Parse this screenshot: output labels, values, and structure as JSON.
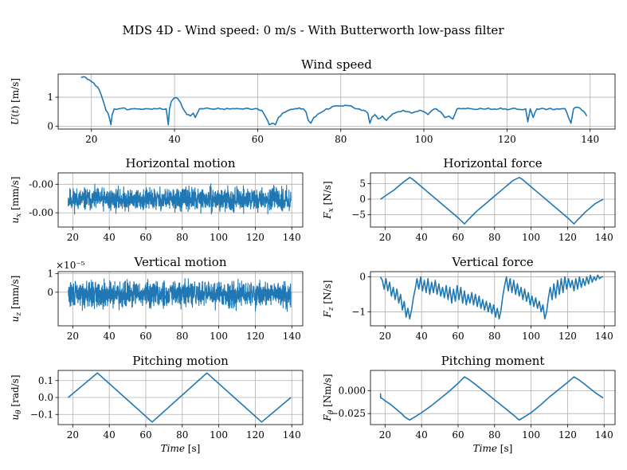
{
  "figure": {
    "title": "MDS 4D - Wind speed: 0 m/s - With Butterworth low-pass filter",
    "line_color": "#1f77b4"
  },
  "chart_data": [
    {
      "id": "wind-speed",
      "type": "line",
      "title": "Wind speed",
      "xlabel": "",
      "ylabel": "U(t) [m/s]",
      "xlim": [
        12,
        146
      ],
      "ylim": [
        -0.1,
        1.8
      ],
      "xticks": [
        20,
        40,
        60,
        80,
        100,
        120,
        140
      ],
      "xtick_labels": [
        "20",
        "40",
        "60",
        "80",
        "100",
        "120",
        "140"
      ],
      "yticks": [
        0,
        1
      ],
      "ytick_labels": [
        "0",
        "1"
      ],
      "grid": true,
      "signal": "wind",
      "x": [
        17.5,
        18.5,
        19.5,
        20.5,
        21.5,
        22.3,
        23.0,
        23.5,
        24.0,
        24.3,
        24.7,
        25.0,
        25.5,
        26.5,
        30,
        34,
        36,
        38.0,
        38.5,
        38.8,
        39.2,
        40.0,
        40.8,
        41.5,
        42.3,
        43.0,
        43.8,
        44.5,
        45.0,
        46.0,
        47.0,
        48.5,
        50.0,
        51.5,
        53.0,
        54.5,
        56.0,
        58.0,
        60.0,
        61.0,
        62.0,
        62.8,
        63.5,
        64.3,
        65.0,
        66.0,
        67.5,
        69.5,
        71.0,
        71.6,
        72.2,
        72.8,
        73.5,
        75.0,
        76.5,
        77.5,
        78.0,
        79.5,
        81.0,
        82.5,
        84.0,
        85.5,
        86.5,
        87.0,
        87.5,
        88.2,
        89.0,
        90.0,
        91.0,
        92.0,
        93.0,
        94.0,
        95.0,
        96.0,
        97.0,
        98.0,
        99.0,
        100.0,
        101.0,
        102.0,
        103.0,
        104.0,
        105.0,
        106.0,
        107.0,
        108.0,
        110.0,
        114.0,
        118.0,
        121.0,
        124.5,
        125.0,
        125.6,
        126.3,
        127.2,
        128.0,
        129.0,
        130.0,
        132.0,
        134.0,
        134.8,
        135.4,
        136.0,
        137.0,
        138.0,
        138.8,
        139.2
      ],
      "y": [
        1.68,
        1.7,
        1.6,
        1.5,
        1.35,
        1.1,
        0.8,
        0.55,
        0.45,
        0.3,
        0.05,
        0.4,
        0.6,
        0.6,
        0.6,
        0.6,
        0.6,
        0.6,
        0.05,
        0.6,
        0.85,
        0.98,
        0.95,
        0.8,
        0.55,
        0.4,
        0.35,
        0.45,
        0.3,
        0.6,
        0.6,
        0.6,
        0.6,
        0.6,
        0.6,
        0.6,
        0.6,
        0.6,
        0.6,
        0.55,
        0.3,
        0.05,
        0.1,
        0.05,
        0.3,
        0.45,
        0.55,
        0.6,
        0.6,
        0.5,
        0.2,
        0.1,
        0.3,
        0.45,
        0.6,
        0.62,
        0.68,
        0.7,
        0.72,
        0.7,
        0.6,
        0.55,
        0.45,
        0.1,
        0.3,
        0.4,
        0.25,
        0.35,
        0.2,
        0.35,
        0.45,
        0.5,
        0.55,
        0.5,
        0.45,
        0.5,
        0.55,
        0.5,
        0.4,
        0.55,
        0.6,
        0.5,
        0.3,
        0.35,
        0.25,
        0.6,
        0.6,
        0.6,
        0.6,
        0.6,
        0.6,
        0.15,
        0.6,
        0.3,
        0.6,
        0.6,
        0.6,
        0.6,
        0.6,
        0.6,
        0.3,
        0.1,
        0.6,
        0.65,
        0.55,
        0.45,
        0.35
      ]
    },
    {
      "id": "horizontal-motion",
      "type": "line",
      "title": "Horizontal motion",
      "xlabel": "",
      "ylabel": "u_x [mm/s]",
      "xlim": [
        12,
        146
      ],
      "ylim": [
        -0.0045,
        0.0012
      ],
      "xticks": [
        20,
        40,
        60,
        80,
        100,
        120,
        140
      ],
      "xtick_labels": [
        "20",
        "40",
        "60",
        "80",
        "100",
        "120",
        "140"
      ],
      "yticks": [
        0.0,
        -0.003
      ],
      "ytick_labels": [
        "-0.00",
        "-0.00"
      ],
      "grid": true,
      "signal": "noise",
      "noise": {
        "x_start": 17.5,
        "x_end": 139.5,
        "center": -0.0016,
        "amplitude": 0.0017,
        "seed": 11
      }
    },
    {
      "id": "horizontal-force",
      "type": "line",
      "title": "Horizontal force",
      "xlabel": "",
      "ylabel": "F_x [N/s]",
      "xlim": [
        12,
        146
      ],
      "ylim": [
        -9,
        8.5
      ],
      "xticks": [
        20,
        40,
        60,
        80,
        100,
        120,
        140
      ],
      "xtick_labels": [
        "20",
        "40",
        "60",
        "80",
        "100",
        "120",
        "140"
      ],
      "yticks": [
        -5,
        0,
        5
      ],
      "ytick_labels": [
        "−5",
        "0",
        "5"
      ],
      "grid": true,
      "signal": "polyline",
      "x": [
        17.5,
        20,
        25,
        30,
        33.5,
        35,
        40,
        45,
        50,
        55,
        60,
        63.5,
        65,
        70,
        75,
        80,
        85,
        90,
        93.5,
        95,
        100,
        105,
        110,
        115,
        120,
        123.5,
        125,
        130,
        135,
        139.5
      ],
      "y": [
        0,
        1,
        3,
        5.5,
        7,
        6.5,
        4,
        1.5,
        -1,
        -3.5,
        -6,
        -8,
        -7,
        -4,
        -1.5,
        1,
        3.5,
        6,
        7,
        6.5,
        4,
        1.5,
        -1,
        -3.5,
        -6,
        -8,
        -7,
        -4,
        -1.5,
        0
      ]
    },
    {
      "id": "vertical-motion",
      "type": "line",
      "title": "Vertical motion",
      "xlabel": "",
      "ylabel": "u_z [mm/s]",
      "offset_text": "×10⁻⁵",
      "xlim": [
        12,
        146
      ],
      "ylim": [
        -1.8,
        1.1
      ],
      "xticks": [
        20,
        40,
        60,
        80,
        100,
        120,
        140
      ],
      "xtick_labels": [
        "20",
        "40",
        "60",
        "80",
        "100",
        "120",
        "140"
      ],
      "yticks": [
        0,
        1
      ],
      "ytick_labels": [
        "0",
        "1"
      ],
      "grid": true,
      "signal": "noise",
      "noise": {
        "x_start": 17.5,
        "x_end": 139.5,
        "center": -0.1,
        "amplitude": 1.0,
        "seed": 29
      }
    },
    {
      "id": "vertical-force",
      "type": "line",
      "title": "Vertical force",
      "xlabel": "",
      "ylabel": "F_z [N/s]",
      "xlim": [
        12,
        146
      ],
      "ylim": [
        -1.4,
        0.15
      ],
      "xticks": [
        20,
        40,
        60,
        80,
        100,
        120,
        140
      ],
      "xtick_labels": [
        "20",
        "40",
        "60",
        "80",
        "100",
        "120",
        "140"
      ],
      "yticks": [
        -1,
        0
      ],
      "ytick_labels": [
        "−1",
        "0"
      ],
      "grid": true,
      "signal": "polyline",
      "x": [
        17.5,
        18.5,
        19.5,
        20.5,
        21.5,
        22.5,
        23.5,
        24.5,
        25.5,
        26.5,
        27.5,
        28.5,
        29.5,
        30.5,
        31.5,
        32.5,
        33.5,
        34.5,
        35.5,
        36.5,
        37.5,
        38.5,
        39.5,
        40.5,
        41.5,
        42.5,
        43.5,
        44.5,
        45.5,
        46.5,
        47.5,
        48.5,
        49.5,
        50.5,
        51.5,
        52.5,
        53.5,
        54.5,
        55.5,
        56.5,
        57.5,
        58.5,
        59.5,
        60.5,
        61.5,
        62.5,
        63.5,
        64.5,
        65.5,
        66.5,
        67.5,
        68.5,
        69.5,
        70.5,
        71.5,
        72.5,
        73.5,
        74.5,
        75.5,
        76.5,
        77.5,
        78.5,
        79.5,
        80.5,
        81.5,
        82.5,
        83.5,
        84.5,
        85.5,
        86.5,
        87.5,
        88.5,
        89.5,
        90.5,
        91.5,
        92.5,
        93.5,
        94.5,
        95.5,
        96.5,
        97.5,
        98.5,
        99.5,
        100.5,
        101.5,
        102.5,
        103.5,
        104.5,
        105.5,
        106.5,
        107.5,
        108.5,
        109.5,
        110.5,
        111.5,
        112.5,
        113.5,
        114.5,
        115.5,
        116.5,
        117.5,
        118.5,
        119.5,
        120.5,
        121.5,
        122.5,
        123.5,
        124.5,
        125.5,
        126.5,
        127.5,
        128.5,
        129.5,
        130.5,
        131.5,
        132.5,
        133.5,
        134.5,
        135.5,
        136.5,
        137.5,
        138.5,
        139.5
      ],
      "y": [
        0.0,
        -0.1,
        -0.35,
        -0.05,
        -0.4,
        -0.15,
        -0.55,
        -0.3,
        -0.65,
        -0.35,
        -0.75,
        -0.5,
        -0.95,
        -0.7,
        -1.15,
        -0.9,
        -1.2,
        -0.95,
        -0.6,
        -0.35,
        -0.05,
        -0.35,
        0.0,
        -0.4,
        -0.1,
        -0.45,
        -0.05,
        -0.5,
        -0.15,
        -0.45,
        -0.1,
        -0.5,
        -0.2,
        -0.55,
        -0.3,
        -0.6,
        -0.25,
        -0.65,
        -0.3,
        -0.75,
        -0.35,
        -0.7,
        -0.25,
        -0.65,
        -0.3,
        -0.75,
        -0.4,
        -0.8,
        -0.5,
        -0.75,
        -0.45,
        -0.8,
        -0.5,
        -0.85,
        -0.55,
        -0.9,
        -0.65,
        -0.95,
        -0.7,
        -1.0,
        -0.75,
        -1.05,
        -0.8,
        -1.15,
        -0.9,
        -1.2,
        -0.95,
        -0.55,
        -0.25,
        0.0,
        -0.4,
        -0.05,
        -0.45,
        -0.1,
        -0.5,
        -0.2,
        -0.55,
        -0.3,
        -0.65,
        -0.35,
        -0.7,
        -0.45,
        -0.8,
        -0.55,
        -0.85,
        -0.6,
        -0.9,
        -0.7,
        -1.0,
        -0.8,
        -1.2,
        -1.0,
        -0.6,
        -0.3,
        -0.65,
        -0.2,
        -0.6,
        -0.1,
        -0.5,
        -0.05,
        -0.45,
        0.0,
        -0.35,
        -0.05,
        -0.3,
        -0.1,
        -0.4,
        -0.05,
        -0.35,
        0.0,
        -0.3,
        -0.05,
        -0.25,
        0.0,
        -0.2,
        0.05,
        -0.15,
        0.0,
        -0.1,
        0.05,
        -0.05,
        0.0,
        0.0
      ],
      "smooth": true
    },
    {
      "id": "pitching-motion",
      "type": "line",
      "title": "Pitching motion",
      "xlabel": "Time [s]",
      "ylabel": "u_θ [rad/s]",
      "xlim": [
        12,
        146
      ],
      "ylim": [
        -0.16,
        0.16
      ],
      "xticks": [
        20,
        40,
        60,
        80,
        100,
        120,
        140
      ],
      "xtick_labels": [
        "20",
        "40",
        "60",
        "80",
        "100",
        "120",
        "140"
      ],
      "yticks": [
        -0.1,
        0.0,
        0.1
      ],
      "ytick_labels": [
        "−0.1",
        "0.0",
        "0.1"
      ],
      "grid": true,
      "signal": "polyline",
      "x": [
        17.5,
        33.5,
        63.5,
        93.5,
        123.5,
        139.5
      ],
      "y": [
        0.0,
        0.145,
        -0.145,
        0.145,
        -0.145,
        0.0
      ]
    },
    {
      "id": "pitching-moment",
      "type": "line",
      "title": "Pitching moment",
      "xlabel": "Time [s]",
      "ylabel": "F_θ [Nm/s]",
      "xlim": [
        12,
        146
      ],
      "ylim": [
        -0.037,
        0.022
      ],
      "xticks": [
        20,
        40,
        60,
        80,
        100,
        120,
        140
      ],
      "xtick_labels": [
        "20",
        "40",
        "60",
        "80",
        "100",
        "120",
        "140"
      ],
      "yticks": [
        -0.025,
        0.0
      ],
      "ytick_labels": [
        "−0.025",
        "0.000"
      ],
      "grid": true,
      "signal": "polyline",
      "x": [
        17.5,
        17.6,
        18,
        20,
        23,
        26,
        29,
        31,
        33.5,
        36,
        40,
        45,
        50,
        55,
        60,
        63.5,
        66,
        70,
        75,
        80,
        85,
        90,
        93.5,
        96,
        100,
        105,
        110,
        115,
        120,
        123.5,
        126,
        130,
        135,
        139.5
      ],
      "y": [
        -0.003,
        -0.008,
        -0.008,
        -0.011,
        -0.015,
        -0.02,
        -0.025,
        -0.029,
        -0.032,
        -0.029,
        -0.024,
        -0.017,
        -0.009,
        -0.001,
        0.008,
        0.015,
        0.012,
        0.006,
        -0.002,
        -0.01,
        -0.018,
        -0.026,
        -0.032,
        -0.029,
        -0.024,
        -0.016,
        -0.007,
        0.001,
        0.009,
        0.015,
        0.012,
        0.006,
        -0.002,
        -0.008
      ]
    }
  ]
}
